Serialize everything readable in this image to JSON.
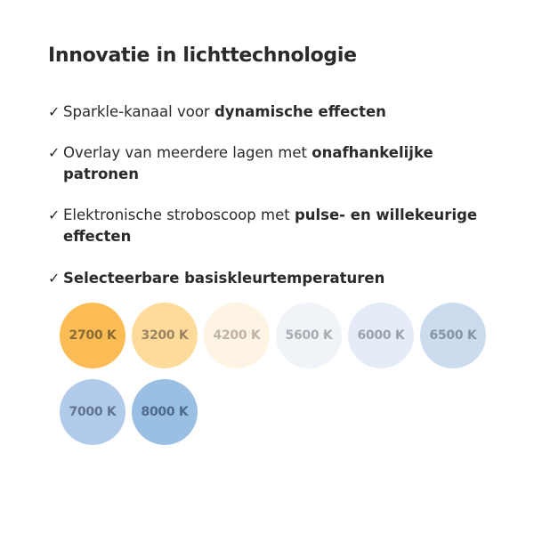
{
  "title": "Innovatie in lichttechnologie",
  "check_icon": "checkmark-icon",
  "bullets": [
    {
      "normal": "Sparkle-kanaal voor ",
      "bold": "dynamische effecten"
    },
    {
      "normal": "Overlay van meerdere lagen met ",
      "bold": "onafhankelijke patronen"
    },
    {
      "normal": "Elektronische stroboscoop met ",
      "bold": "pulse- en willekeurige effecten"
    },
    {
      "normal": "",
      "bold": "Selecteerbare basiskleurtemperaturen"
    }
  ],
  "temperatures": [
    {
      "label": "2700 K",
      "color": "#fbbc55",
      "text_color": "#8a6a35"
    },
    {
      "label": "3200 K",
      "color": "#fedb9b",
      "text_color": "#9a8560"
    },
    {
      "label": "4200 K",
      "color": "#fef4e3",
      "text_color": "#bdb5a5"
    },
    {
      "label": "5600 K",
      "color": "#f0f4f9",
      "text_color": "#a8adb3"
    },
    {
      "label": "6000 K",
      "color": "#e5ecf8",
      "text_color": "#9aa2ae"
    },
    {
      "label": "6500 K",
      "color": "#ccdcef",
      "text_color": "#8595a8"
    },
    {
      "label": "7000 K",
      "color": "#b2cbea",
      "text_color": "#5f7690"
    },
    {
      "label": "8000 K",
      "color": "#99bfe3",
      "text_color": "#4d6a88"
    }
  ]
}
